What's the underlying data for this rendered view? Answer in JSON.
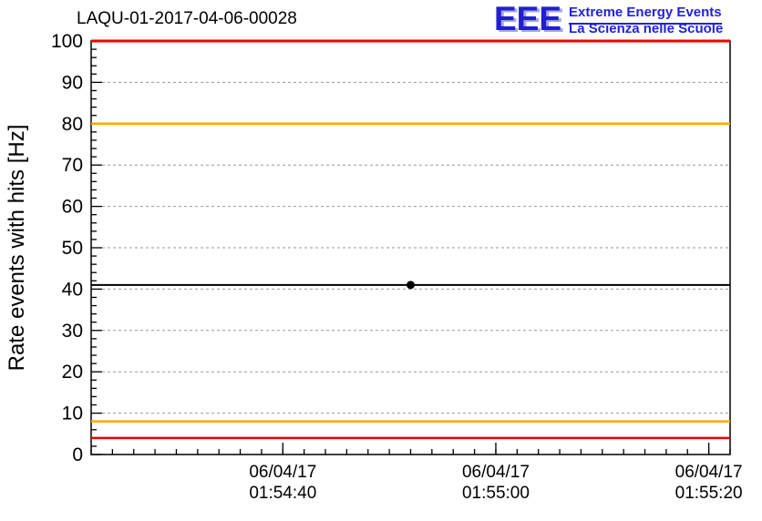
{
  "logo": {
    "acronym": "EEE",
    "line1": "Extreme Energy Events",
    "line2": "La Scienza nelle Scuole",
    "color": "#2222dd"
  },
  "chart_data": {
    "type": "scatter",
    "title": "LAQU-01-2017-04-06-00028",
    "ylabel": "Rate events with hits [Hz]",
    "xlabel": "",
    "ylim": [
      0,
      100
    ],
    "ytick_step": 10,
    "yminortick_step": 2,
    "grid": {
      "horizontal_dashed": true,
      "vertical": false,
      "color": "#999999"
    },
    "x_axis": {
      "reference": "seconds after 06/04/17 01:54:00",
      "domain_seconds": [
        22,
        82
      ],
      "minor_tick_seconds": 2,
      "ticks": [
        {
          "t": 40,
          "date": "06/04/17",
          "time": "01:54:40"
        },
        {
          "t": 60,
          "date": "06/04/17",
          "time": "01:55:00"
        },
        {
          "t": 80,
          "date": "06/04/17",
          "time": "01:55:20"
        }
      ]
    },
    "series": [
      {
        "name": "mean-rate-line",
        "type": "hline",
        "color": "#000000",
        "y": 41
      },
      {
        "name": "run-rate-point",
        "type": "scatter",
        "marker": "filled-circle",
        "color": "#000000",
        "points": [
          {
            "t": 52,
            "y": 41
          }
        ]
      }
    ],
    "threshold_lines": [
      {
        "name": "alarm-upper",
        "y": 100,
        "color": "#ee0000",
        "width": 3
      },
      {
        "name": "warning-upper",
        "y": 80,
        "color": "#ffa500",
        "width": 2.5
      },
      {
        "name": "warning-lower",
        "y": 8,
        "color": "#ffa500",
        "width": 2.5
      },
      {
        "name": "alarm-lower",
        "y": 4,
        "color": "#ee0000",
        "width": 2.5
      }
    ],
    "legend": "none"
  }
}
